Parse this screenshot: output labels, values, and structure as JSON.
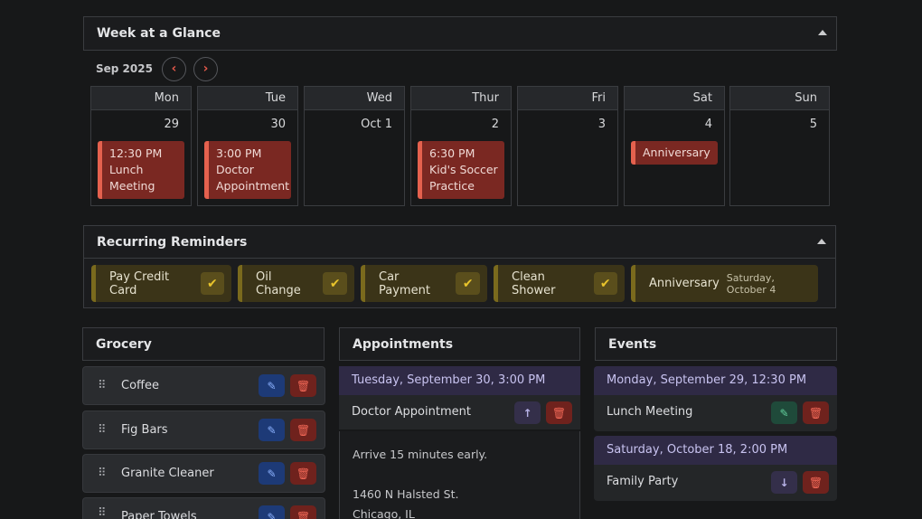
{
  "week": {
    "title": "Week at a Glance",
    "month": "Sep 2025",
    "days": [
      {
        "name": "Mon",
        "num": "29",
        "events": [
          "12:30 PM",
          "Lunch",
          "Meeting"
        ]
      },
      {
        "name": "Tue",
        "num": "30",
        "events": [
          "3:00 PM",
          "Doctor",
          "Appointment"
        ]
      },
      {
        "name": "Wed",
        "num": "Oct 1",
        "events": []
      },
      {
        "name": "Thur",
        "num": "2",
        "events": [
          "6:30 PM",
          "Kid's Soccer",
          "Practice"
        ]
      },
      {
        "name": "Fri",
        "num": "3",
        "events": []
      },
      {
        "name": "Sat",
        "num": "4",
        "events": [
          "Anniversary"
        ]
      },
      {
        "name": "Sun",
        "num": "5",
        "events": []
      }
    ]
  },
  "reminders": {
    "title": "Recurring Reminders",
    "items": [
      {
        "label": "Pay Credit Card"
      },
      {
        "label": "Oil Change"
      },
      {
        "label": "Car Payment"
      },
      {
        "label": "Clean Shower"
      },
      {
        "label": "Anniversary",
        "date": "Saturday, October 4"
      }
    ]
  },
  "grocery": {
    "title": "Grocery",
    "items": [
      "Coffee",
      "Fig Bars",
      "Granite Cleaner",
      "Paper Towels"
    ]
  },
  "appointments": {
    "title": "Appointments",
    "date": "Tuesday, September 30, 3:00 PM",
    "name": "Doctor Appointment",
    "note": "Arrive 15 minutes early.",
    "address1": "1460 N Halsted St.",
    "address2": "Chicago, IL"
  },
  "events": {
    "title": "Events",
    "items": [
      {
        "date": "Monday, September 29, 12:30 PM",
        "name": "Lunch Meeting"
      },
      {
        "date": "Saturday, October 18, 2:00 PM",
        "name": "Family Party"
      }
    ]
  }
}
